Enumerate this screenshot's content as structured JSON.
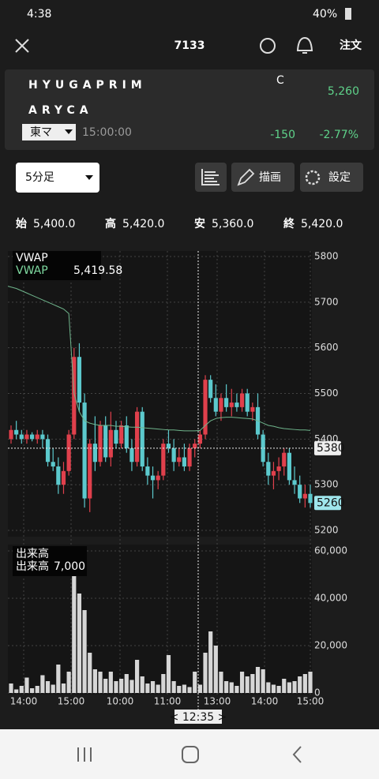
{
  "status_bar": {
    "time": "4:38",
    "battery": "40%"
  },
  "header": {
    "symbol": "7133",
    "order_button": "注文"
  },
  "quote": {
    "name_line1": "HYUGAPRIM",
    "name_line2": "ARYCA",
    "market": "東マ",
    "time": "15:00:00",
    "flag": "C",
    "price": "5,260",
    "change": "-150",
    "change_pct": "-2.77%"
  },
  "toolbar": {
    "interval": "5分足",
    "draw": "描画",
    "settings": "設定"
  },
  "ohlc": [
    {
      "label": "始",
      "value": "5,400.0"
    },
    {
      "label": "高",
      "value": "5,420.0"
    },
    {
      "label": "安",
      "value": "5,360.0"
    },
    {
      "label": "終",
      "value": "5,420.0"
    }
  ],
  "chart": {
    "type": "candlestick",
    "ylim": [
      5200,
      5800
    ],
    "yticks": [
      5200,
      5300,
      5400,
      5500,
      5600,
      5700,
      5800
    ],
    "open": [
      5400,
      5420,
      5410,
      5400,
      5410,
      5400,
      5410,
      5400,
      5350,
      5340,
      5300,
      5330,
      5410,
      5580,
      5480,
      5270,
      5390,
      5350,
      5430,
      5360,
      5420,
      5390,
      5430,
      5380,
      5350,
      5460,
      5340,
      5320,
      5310,
      5320,
      5390,
      5380,
      5350,
      5360,
      5340,
      5380,
      5390,
      5410,
      5530,
      5490,
      5460,
      5490,
      5470,
      5480,
      5470,
      5500,
      5460,
      5470,
      5410,
      5350,
      5320,
      5330,
      5340,
      5370,
      5310,
      5300,
      5270,
      5280
    ],
    "high": [
      5430,
      5440,
      5420,
      5420,
      5415,
      5420,
      5420,
      5410,
      5380,
      5360,
      5350,
      5420,
      5600,
      5610,
      5500,
      5400,
      5450,
      5440,
      5450,
      5460,
      5440,
      5440,
      5450,
      5400,
      5470,
      5470,
      5360,
      5340,
      5330,
      5400,
      5420,
      5400,
      5380,
      5390,
      5390,
      5400,
      5420,
      5540,
      5540,
      5520,
      5500,
      5520,
      5510,
      5500,
      5510,
      5510,
      5480,
      5500,
      5420,
      5370,
      5350,
      5360,
      5380,
      5380,
      5340,
      5320,
      5300,
      5300
    ],
    "low": [
      5390,
      5400,
      5390,
      5390,
      5395,
      5390,
      5380,
      5340,
      5330,
      5280,
      5280,
      5320,
      5400,
      5460,
      5250,
      5240,
      5330,
      5340,
      5350,
      5340,
      5380,
      5380,
      5370,
      5330,
      5340,
      5330,
      5300,
      5270,
      5290,
      5310,
      5370,
      5330,
      5340,
      5330,
      5330,
      5360,
      5380,
      5400,
      5480,
      5450,
      5440,
      5460,
      5450,
      5460,
      5460,
      5450,
      5440,
      5400,
      5340,
      5300,
      5290,
      5310,
      5320,
      5300,
      5280,
      5260,
      5250,
      5250
    ],
    "close": [
      5420,
      5410,
      5400,
      5410,
      5400,
      5410,
      5400,
      5350,
      5340,
      5300,
      5330,
      5410,
      5580,
      5480,
      5270,
      5390,
      5350,
      5430,
      5360,
      5420,
      5390,
      5430,
      5380,
      5350,
      5460,
      5340,
      5320,
      5310,
      5320,
      5390,
      5380,
      5350,
      5360,
      5340,
      5380,
      5390,
      5410,
      5530,
      5490,
      5460,
      5490,
      5470,
      5480,
      5470,
      5500,
      5460,
      5470,
      5410,
      5350,
      5320,
      5330,
      5340,
      5370,
      5310,
      5300,
      5270,
      5280,
      5260
    ],
    "vwap": [
      5735,
      5730,
      5725,
      5720,
      5715,
      5710,
      5705,
      5700,
      5695,
      5690,
      5685,
      5675,
      5500,
      5460,
      5440,
      5435,
      5432,
      5430,
      5430,
      5430,
      5428,
      5428,
      5427,
      5426,
      5426,
      5425,
      5424,
      5423,
      5422,
      5421,
      5420,
      5420,
      5419,
      5418,
      5418,
      5418,
      5419,
      5430,
      5440,
      5445,
      5447,
      5448,
      5448,
      5447,
      5446,
      5445,
      5444,
      5440,
      5435,
      5430,
      5428,
      5425,
      5423,
      5422,
      5421,
      5420,
      5420,
      5419
    ],
    "legend_title": "VWAP",
    "vwap_label": "VWAP",
    "vwap_value": "5,419.58",
    "crosshair_price": 5380,
    "last_price": 5260,
    "x_labels": [
      "14:00",
      "15:00",
      "10:00",
      "11:00",
      "13:00",
      "14:00",
      "15:00"
    ],
    "crosshair_time": "< 12:35 >",
    "volume": {
      "title": "出来高",
      "label": "出来高",
      "value": "7,000",
      "ylim": [
        0,
        60000
      ],
      "yticks": [
        0,
        {
          "value": 20000,
          "label": "20,000"
        },
        {
          "value": 40000,
          "label": "40,000"
        },
        {
          "value": 60000,
          "label": "60,000"
        }
      ],
      "values": [
        4000,
        1500,
        3000,
        6500,
        2000,
        3000,
        7500,
        5000,
        3500,
        12000,
        4000,
        9000,
        60000,
        42000,
        35000,
        17000,
        10000,
        9000,
        6000,
        9000,
        5000,
        6000,
        8000,
        5500,
        14000,
        7000,
        4000,
        5000,
        3500,
        8000,
        16000,
        5000,
        3000,
        3500,
        2500,
        9000,
        3500,
        17000,
        26000,
        20000,
        9000,
        5000,
        4500,
        3000,
        9000,
        7000,
        8000,
        11000,
        10000,
        4500,
        3500,
        3000,
        6000,
        4500,
        5000,
        7000,
        8000,
        9000
      ]
    }
  }
}
